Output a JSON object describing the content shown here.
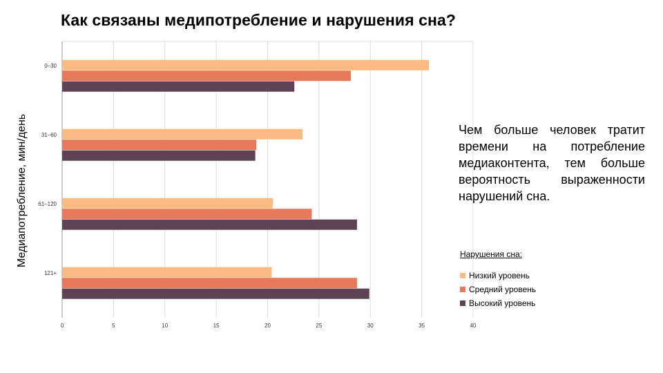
{
  "title": "Как связаны медипотребление и нарушения сна?",
  "callout_text": "Чем больше человек тратит времени на потребление медиаконтента, тем больше вероятность выраженности нарушений сна.",
  "colors": {
    "low": "#f9bb82",
    "mid": "#e8785a",
    "high": "#5f4355",
    "grid": "#dcdcdc",
    "axis": "#999999"
  },
  "chart_data": {
    "type": "bar",
    "orientation": "horizontal",
    "ylabel": "Медиапотребление, мин/день",
    "xlabel": "",
    "categories": [
      "0–30",
      "31–60",
      "61–120",
      "121+"
    ],
    "xlim": [
      0,
      40
    ],
    "xticks": [
      0,
      5,
      10,
      15,
      20,
      25,
      30,
      35,
      40
    ],
    "grid": true,
    "legend_title": "Нарушения сна:",
    "legend_position": "right",
    "series": [
      {
        "name": "Низкий уровень",
        "color": "#f9bb82",
        "values": [
          35.7,
          23.4,
          20.5,
          20.4
        ]
      },
      {
        "name": "Средний уровень",
        "color": "#e8785a",
        "values": [
          28.1,
          18.9,
          24.3,
          28.7
        ]
      },
      {
        "name": "Высокий уровень",
        "color": "#5f4355",
        "values": [
          22.6,
          18.8,
          28.7,
          29.9
        ]
      }
    ]
  }
}
